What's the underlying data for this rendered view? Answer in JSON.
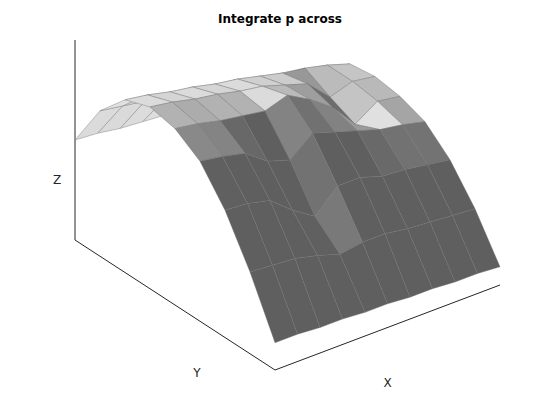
{
  "chart_data": {
    "type": "surface",
    "title": "Integrate p across",
    "x_label": "X",
    "y_label": "Y",
    "z_label": "Z",
    "x": [
      0,
      1,
      2,
      3,
      4,
      5,
      6,
      7,
      8,
      9,
      10
    ],
    "y": [
      0,
      1,
      2,
      3,
      4,
      5,
      6,
      7,
      8
    ],
    "z": [
      [
        0.15,
        0.15,
        0.14,
        0.14,
        0.13,
        0.13,
        0.12,
        0.12,
        0.11,
        0.11,
        0.1
      ],
      [
        0.45,
        0.44,
        0.43,
        0.4,
        0.36,
        0.38,
        0.38,
        0.36,
        0.35,
        0.34,
        0.33
      ],
      [
        0.7,
        0.69,
        0.66,
        0.56,
        0.48,
        0.6,
        0.6,
        0.56,
        0.55,
        0.53,
        0.51
      ],
      [
        0.88,
        0.86,
        0.83,
        0.74,
        0.7,
        0.8,
        0.76,
        0.72,
        0.68,
        0.66,
        0.63
      ],
      [
        0.97,
        0.95,
        0.92,
        0.9,
        0.88,
        0.92,
        0.85,
        0.76,
        0.62,
        0.7,
        0.68
      ],
      [
        1.0,
        0.98,
        0.95,
        0.93,
        0.9,
        0.88,
        0.84,
        0.8,
        0.68,
        0.72,
        0.7
      ],
      [
        0.95,
        0.93,
        0.9,
        0.88,
        0.85,
        0.83,
        0.8,
        0.77,
        0.75,
        0.72,
        0.68
      ],
      [
        0.8,
        0.78,
        0.76,
        0.74,
        0.72,
        0.7,
        0.67,
        0.65,
        0.62,
        0.6,
        0.57
      ],
      [
        0.55,
        0.54,
        0.52,
        0.51,
        0.5,
        0.48,
        0.46,
        0.45,
        0.43,
        0.41,
        0.39
      ]
    ],
    "xlim": [
      0,
      10
    ],
    "ylim": [
      0,
      8
    ],
    "zlim": [
      0,
      1.1
    ],
    "tick_labels": false,
    "color": "#707070"
  }
}
